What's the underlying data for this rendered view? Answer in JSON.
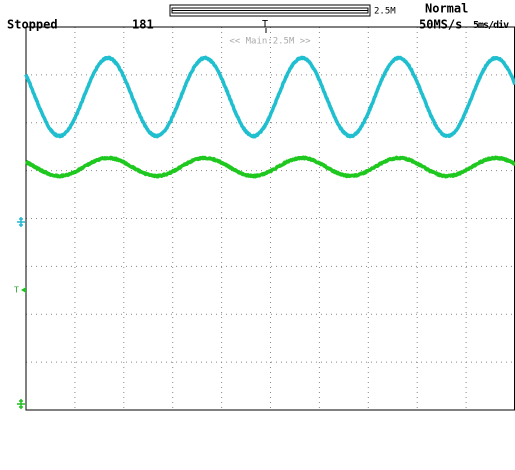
{
  "status": "Stopped",
  "acquisition_count": "181",
  "record_length": "2.5M",
  "trigger_mode": "Normal",
  "sample_rate": "50MS/s",
  "timebase": "5ms/div",
  "zoom_label": "<< Main:2.5M >>"
}
